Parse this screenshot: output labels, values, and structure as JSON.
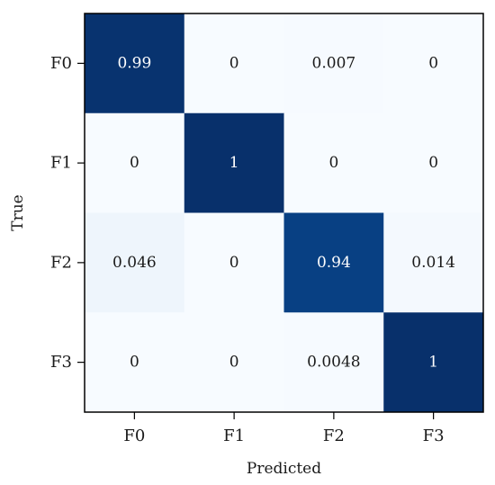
{
  "chart_data": {
    "type": "heatmap",
    "xlabel": "Predicted",
    "ylabel": "True",
    "x_categories": [
      "F0",
      "F1",
      "F2",
      "F3"
    ],
    "y_categories": [
      "F0",
      "F1",
      "F2",
      "F3"
    ],
    "values": [
      [
        0.99,
        0,
        0.007,
        0
      ],
      [
        0,
        1,
        0,
        0
      ],
      [
        0.046,
        0,
        0.94,
        0.014
      ],
      [
        0,
        0,
        0.0048,
        1
      ]
    ],
    "value_labels": [
      [
        "0.99",
        "0",
        "0.007",
        "0"
      ],
      [
        "0",
        "1",
        "0",
        "0"
      ],
      [
        "0.046",
        "0",
        "0.94",
        "0.014"
      ],
      [
        "0",
        "0",
        "0.0048",
        "1"
      ]
    ],
    "colormap": "Blues",
    "vmin": 0,
    "vmax": 1,
    "colors": {
      "low": "#f7fbff",
      "high": "#08306b",
      "text_dark": "#1a1a1a",
      "text_light": "#ffffff"
    }
  }
}
